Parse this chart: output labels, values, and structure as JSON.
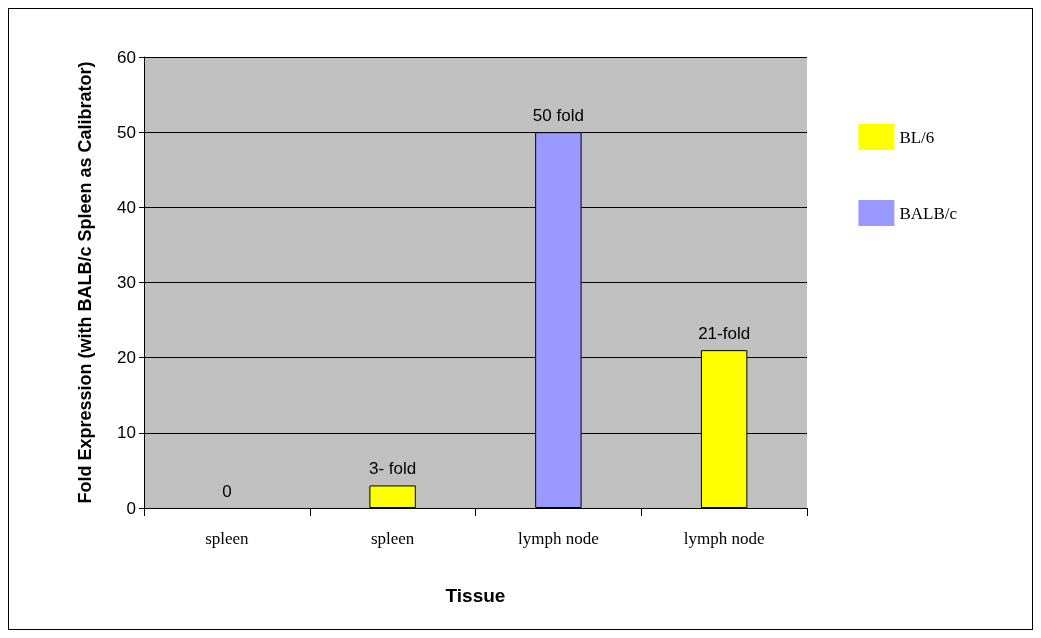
{
  "chart_data": {
    "type": "bar",
    "xlabel": "Tissue",
    "ylabel": "Fold Expression (with BALB/c Spleen as Calibrator)",
    "categories": [
      "spleen",
      "spleen",
      "lymph node",
      "lymph node"
    ],
    "series": [
      {
        "name": "BL/6",
        "color": "#ffff00",
        "values": [
          null,
          3,
          null,
          21
        ],
        "value_labels": [
          null,
          "3- fold",
          null,
          "21-fold"
        ]
      },
      {
        "name": "BALB/c",
        "color": "#9999ff",
        "values": [
          0,
          null,
          50,
          null
        ],
        "value_labels": [
          "0",
          null,
          "50 fold",
          null
        ]
      }
    ],
    "ylim": [
      0,
      60
    ],
    "yticks": [
      0,
      10,
      20,
      30,
      40,
      50,
      60
    ],
    "grid": "y",
    "legend": "right"
  }
}
